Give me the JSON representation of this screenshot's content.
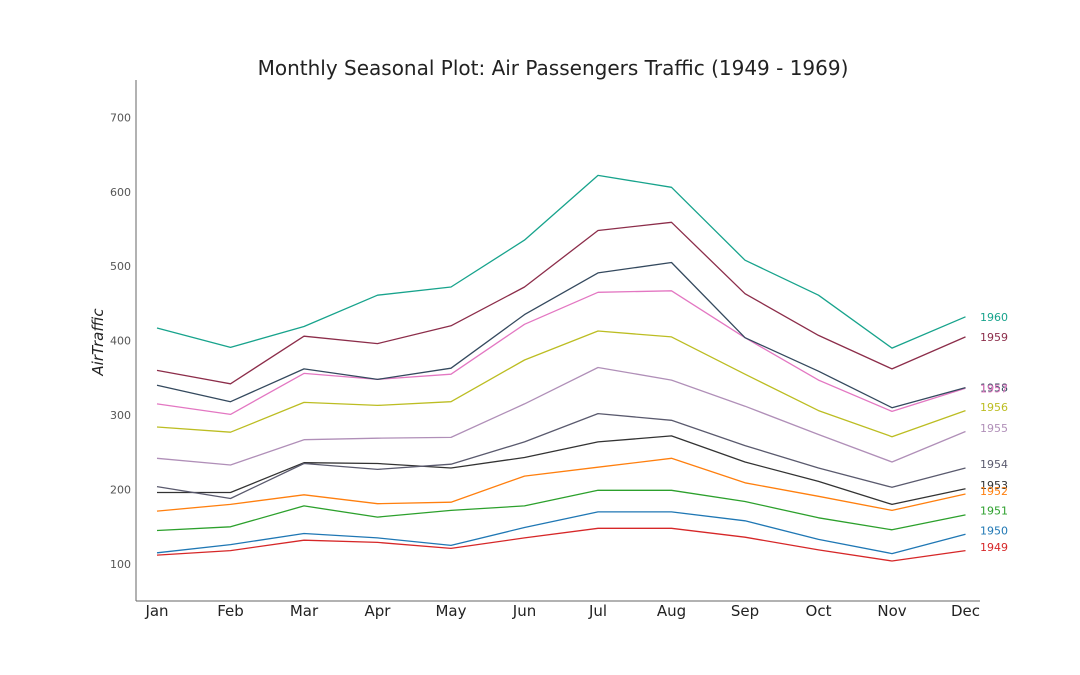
{
  "chart_data": {
    "type": "line",
    "title": "Monthly Seasonal Plot: Air Passengers Traffic (1949 - 1969)",
    "xlabel": "",
    "ylabel": "AirTraffic",
    "categories": [
      "Jan",
      "Feb",
      "Mar",
      "Apr",
      "May",
      "Jun",
      "Jul",
      "Aug",
      "Sep",
      "Oct",
      "Nov",
      "Dec"
    ],
    "yticks": [
      "100",
      "200",
      "300",
      "400",
      "500",
      "600",
      "700"
    ],
    "ylim": [
      50,
      750
    ],
    "grid": false,
    "series": [
      {
        "name": "1949",
        "color": "#d62728",
        "values": [
          112,
          118,
          132,
          129,
          121,
          135,
          148,
          148,
          136,
          119,
          104,
          118
        ]
      },
      {
        "name": "1950",
        "color": "#1f77b4",
        "values": [
          115,
          126,
          141,
          135,
          125,
          149,
          170,
          170,
          158,
          133,
          114,
          140
        ]
      },
      {
        "name": "1951",
        "color": "#2ca02c",
        "values": [
          145,
          150,
          178,
          163,
          172,
          178,
          199,
          199,
          184,
          162,
          146,
          166
        ]
      },
      {
        "name": "1952",
        "color": "#ff7f0e",
        "values": [
          171,
          180,
          193,
          181,
          183,
          218,
          230,
          242,
          209,
          191,
          172,
          194
        ]
      },
      {
        "name": "1953",
        "color": "#333333",
        "values": [
          196,
          196,
          236,
          235,
          229,
          243,
          264,
          272,
          237,
          211,
          180,
          201
        ]
      },
      {
        "name": "1954",
        "color": "#5a5a6e",
        "values": [
          204,
          188,
          235,
          227,
          234,
          264,
          302,
          293,
          259,
          229,
          203,
          229
        ]
      },
      {
        "name": "1955",
        "color": "#b08fb8",
        "values": [
          242,
          233,
          267,
          269,
          270,
          315,
          364,
          347,
          312,
          274,
          237,
          278
        ]
      },
      {
        "name": "1956",
        "color": "#bcbd22",
        "values": [
          284,
          277,
          317,
          313,
          318,
          374,
          413,
          405,
          355,
          306,
          271,
          306
        ]
      },
      {
        "name": "1957",
        "color": "#e377c2",
        "values": [
          315,
          301,
          356,
          348,
          355,
          422,
          465,
          467,
          404,
          347,
          305,
          336
        ]
      },
      {
        "name": "1958",
        "color": "#34495e",
        "values": [
          340,
          318,
          362,
          348,
          363,
          435,
          491,
          505,
          404,
          359,
          310,
          337
        ]
      },
      {
        "name": "1959",
        "color": "#8c2d4a",
        "values": [
          360,
          342,
          406,
          396,
          420,
          472,
          548,
          559,
          463,
          407,
          362,
          405
        ]
      },
      {
        "name": "1960",
        "color": "#17a38c",
        "values": [
          417,
          391,
          419,
          461,
          472,
          535,
          622,
          606,
          508,
          461,
          390,
          432
        ]
      }
    ],
    "series_labels": [
      {
        "name": "1960",
        "color": "#17a38c",
        "label_y": 432
      },
      {
        "name": "1959",
        "color": "#8c2d4a",
        "label_y": 405
      },
      {
        "name": "1958",
        "color": "#34495e",
        "label_y": 337
      },
      {
        "name": "1957",
        "color": "#e377c2",
        "label_y": 336
      },
      {
        "name": "1956",
        "color": "#bcbd22",
        "label_y": 311
      },
      {
        "name": "1955",
        "color": "#b08fb8",
        "label_y": 283
      },
      {
        "name": "1954",
        "color": "#5a5a6e",
        "label_y": 234
      },
      {
        "name": "1953",
        "color": "#333333",
        "label_y": 206
      },
      {
        "name": "1952",
        "color": "#ff7f0e",
        "label_y": 198
      },
      {
        "name": "1951",
        "color": "#2ca02c",
        "label_y": 172
      },
      {
        "name": "1950",
        "color": "#1f77b4",
        "label_y": 145
      },
      {
        "name": "1949",
        "color": "#d62728",
        "label_y": 123
      }
    ]
  }
}
